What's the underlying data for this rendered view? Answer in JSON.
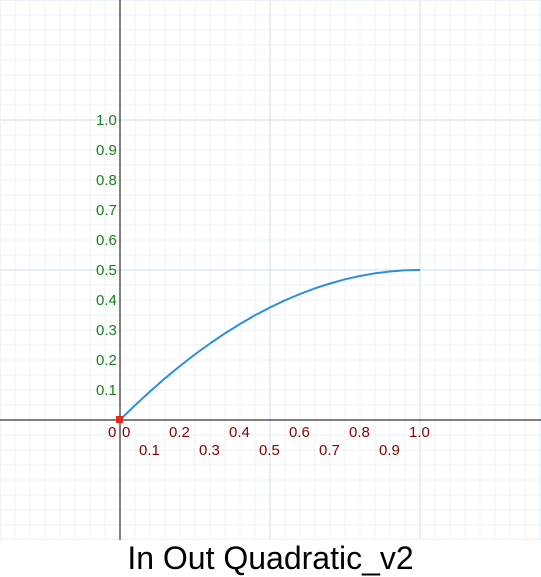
{
  "chart_data": {
    "type": "line",
    "title": "In Out Quadratic_v2",
    "xlabel": "",
    "ylabel": "",
    "xlim": [
      -0.4,
      1.4
    ],
    "ylim": [
      -0.4,
      1.4
    ],
    "grid": true,
    "x_ticks_upper": [
      "0",
      "0.2",
      "0.4",
      "0.6",
      "0.8",
      "1.0"
    ],
    "x_ticks_lower": [
      "0.1",
      "0.3",
      "0.5",
      "0.7",
      "0.9"
    ],
    "y_ticks": [
      "0.1",
      "0.2",
      "0.3",
      "0.4",
      "0.5",
      "0.6",
      "0.7",
      "0.8",
      "0.9",
      "1.0"
    ],
    "origin_label": "0",
    "series": [
      {
        "x": [
          0.0,
          0.05,
          0.1,
          0.15,
          0.2,
          0.25,
          0.3,
          0.35,
          0.4,
          0.45,
          0.5,
          0.55,
          0.6,
          0.65,
          0.7,
          0.75,
          0.8,
          0.85,
          0.9,
          0.95,
          1.0
        ],
        "y": [
          0.0,
          0.049,
          0.095,
          0.139,
          0.18,
          0.219,
          0.255,
          0.289,
          0.32,
          0.349,
          0.375,
          0.399,
          0.42,
          0.439,
          0.455,
          0.469,
          0.48,
          0.489,
          0.495,
          0.499,
          0.5
        ]
      }
    ],
    "colors": {
      "curve": "#2b8fdc",
      "x_tick_labels": "#8b0000",
      "y_tick_labels": "#1a7f1a",
      "marker": "#e32a1c",
      "major_grid": "#c9dff0",
      "minor_grid": "#ecf3f9",
      "axes": "#000000"
    },
    "marker": {
      "x": 0,
      "y": 0
    }
  }
}
